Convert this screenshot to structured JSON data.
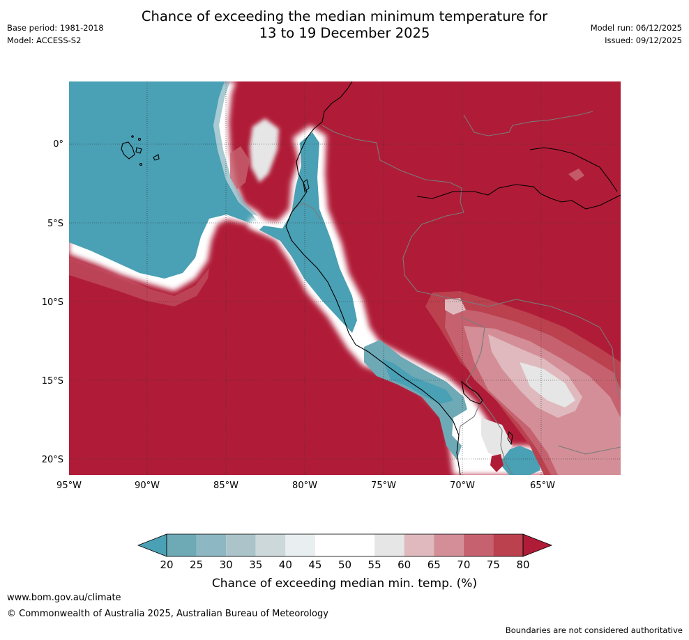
{
  "header": {
    "title_line1": "Chance of exceeding the median minimum temperature for",
    "title_line2": "13 to 19 December 2025",
    "base_period": "Base period: 1981-2018",
    "model": "Model: ACCESS-S2",
    "model_run": "Model run: 06/12/2025",
    "issued": "Issued: 09/12/2025"
  },
  "map": {
    "lat_labels": [
      "0°",
      "5°S",
      "10°S",
      "15°S",
      "20°S"
    ],
    "lon_labels": [
      "95°W",
      "90°W",
      "85°W",
      "80°W",
      "75°W",
      "70°W",
      "65°W"
    ]
  },
  "colorbar": {
    "label": "Chance of exceeding median min. temp. (%)",
    "ticks": [
      "20",
      "25",
      "30",
      "35",
      "40",
      "45",
      "50",
      "55",
      "60",
      "65",
      "70",
      "75",
      "80"
    ],
    "colors": [
      "#4aa0b4",
      "#6ea9b6",
      "#8db7c2",
      "#abc4ca",
      "#cdd8db",
      "#e9eef0",
      "#ffffff",
      "#ffffff",
      "#e6e6e6",
      "#dfb9bd",
      "#d38e97",
      "#c6626f",
      "#bb414f",
      "#b01c37"
    ]
  },
  "footer": {
    "url": "www.bom.gov.au/climate",
    "copyright": "© Commonwealth of Australia 2025, Australian Bureau of Meteorology",
    "disclaimer": "Boundaries are not considered authoritative"
  }
}
